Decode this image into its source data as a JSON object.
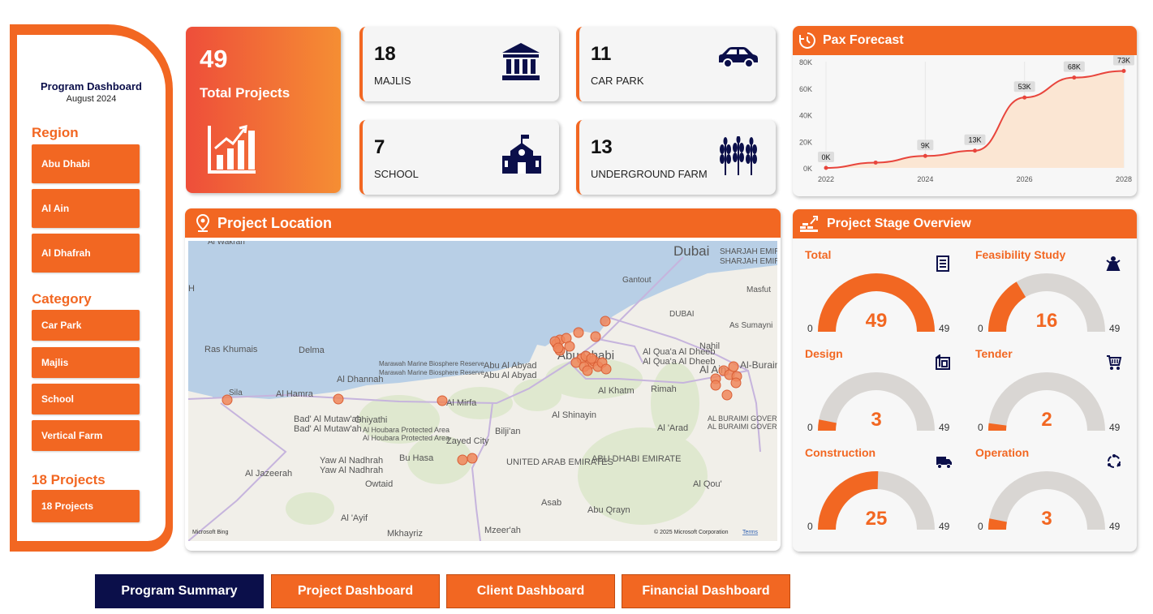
{
  "sidebar": {
    "title": "Program Dashboard",
    "subtitle": "August 2024",
    "region_heading": "Region",
    "regions": [
      "Abu Dhabi",
      "Al Ain",
      "Al Dhafrah"
    ],
    "category_heading": "Category",
    "categories": [
      "Car Park",
      "Majlis",
      "School",
      "Vertical Farm"
    ],
    "projects_heading": "18 Projects",
    "projects_button": "18 Projects"
  },
  "total": {
    "value": "49",
    "label": "Total Projects",
    "icon": "growth-chart-icon"
  },
  "kpis": [
    {
      "value": "18",
      "label": "MAJLIS",
      "icon": "institution-icon"
    },
    {
      "value": "11",
      "label": "CAR PARK",
      "icon": "car-icon"
    },
    {
      "value": "7",
      "label": "SCHOOL",
      "icon": "school-icon"
    },
    {
      "value": "13",
      "label": "UNDERGROUND FARM",
      "icon": "wheat-icon"
    }
  ],
  "pax": {
    "title": "Pax Forecast",
    "icon": "clock-history-icon",
    "chart_data": {
      "type": "area",
      "x": [
        2022,
        2023,
        2024,
        2025,
        2026,
        2027,
        2028
      ],
      "y_raw": [
        0,
        4000,
        9000,
        13000,
        53000,
        68000,
        73000
      ],
      "data_labels": [
        "0K",
        "",
        "9K",
        "13K",
        "53K",
        "68K",
        "73K"
      ],
      "x_ticks": [
        "2022",
        "2024",
        "2026",
        "2028"
      ],
      "y_ticks": [
        "0K",
        "20K",
        "40K",
        "60K",
        "80K"
      ],
      "ylim": [
        0,
        80000
      ],
      "line_color": "#e8453c",
      "fill_color": "#fbe6d3"
    }
  },
  "map": {
    "title": "Project Location",
    "icon": "map-pin-icon",
    "places": [
      "Al Wakrah",
      "Dubai",
      "SHARJAH EMIRATE",
      "Gantout",
      "Masfut",
      "DUBAI",
      "As Sumayni",
      "Ras Khumais",
      "Delma",
      "Marawah Marine Biosphere Reserve",
      "Abu Al Abyad",
      "Abu Dhabi",
      "Al Qua'a Al Dheeb",
      "Nahil",
      "Al Ain",
      "Al-Buraimi",
      "Sila",
      "Al Hamra",
      "Al Dhannah",
      "Al Mirfa",
      "Al Khatm",
      "Rimah",
      "Bad' Al Mutaw'ah",
      "Ghiyathi",
      "Al Houbara Protected Area",
      "Bilji'an",
      "Al Shinayin",
      "Al 'Arad",
      "AL BURAIMI GOVERNORATE",
      "Zayed City",
      "UNITED ARAB EMIRATES",
      "ABU DHABI EMIRATE",
      "Yaw Al Nadhrah",
      "Bu Hasa",
      "Al Jazeerah",
      "Owtaid",
      "Asab",
      "Al Qou'",
      "Abu Qrayn",
      "Al 'Ayif",
      "Mkhayriz",
      "Mzeer'ah",
      "H"
    ],
    "attribution_left": "Microsoft Bing",
    "attribution_right": "© 2025 Microsoft Corporation",
    "terms": "Terms"
  },
  "stages": {
    "title": "Project Stage Overview",
    "icon": "stage-icon",
    "items": [
      {
        "name": "Total",
        "value": 49,
        "min": "0",
        "max": "49",
        "icon": "document-list-icon"
      },
      {
        "name": "Feasibility Study",
        "value": 16,
        "min": "0",
        "max": "49",
        "icon": "person-star-icon"
      },
      {
        "name": "Design",
        "value": 3,
        "min": "0",
        "max": "49",
        "icon": "blueprint-icon"
      },
      {
        "name": "Tender",
        "value": 2,
        "min": "0",
        "max": "49",
        "icon": "cart-icon"
      },
      {
        "name": "Construction",
        "value": 25,
        "min": "0",
        "max": "49",
        "icon": "truck-icon"
      },
      {
        "name": "Operation",
        "value": 3,
        "min": "0",
        "max": "49",
        "icon": "cycle-icon"
      }
    ]
  },
  "nav": [
    "Program Summary",
    "Project Dashboard",
    "Client Dashboard",
    "Financial Dashboard"
  ],
  "colors": {
    "accent": "#f26722",
    "navy": "#0b0f4a",
    "gauge_bg": "#d9d6d3"
  }
}
